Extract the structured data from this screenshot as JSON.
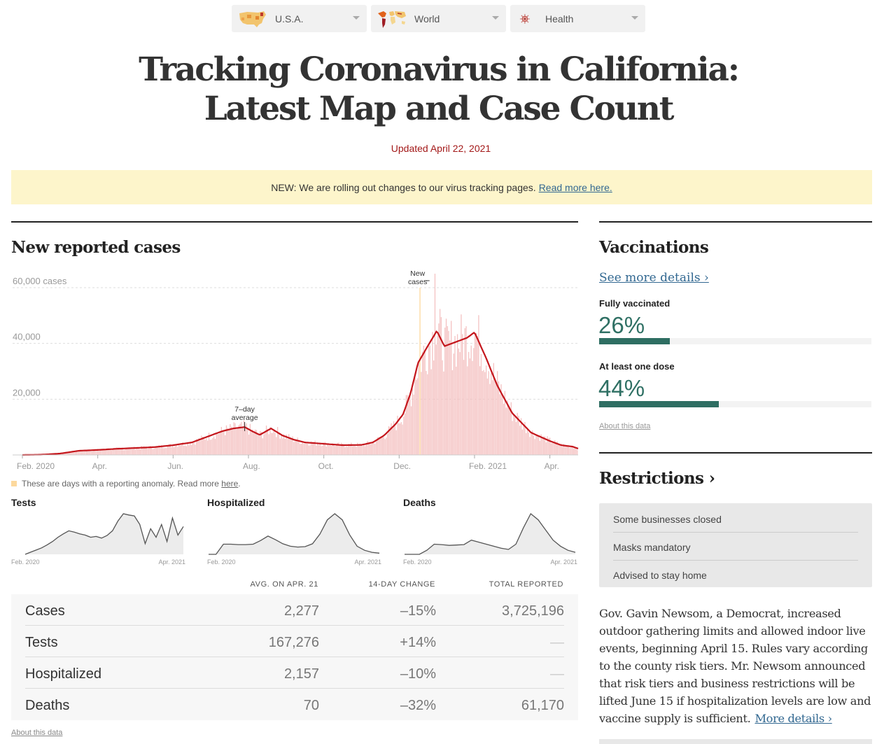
{
  "nav": [
    {
      "label": "U.S.A.",
      "icon": "usa-map-icon"
    },
    {
      "label": "World",
      "icon": "world-map-icon"
    },
    {
      "label": "Health",
      "icon": "virus-icon"
    }
  ],
  "header": {
    "title_line1": "Tracking Coronavirus in California:",
    "title_line2": "Latest Map and Case Count",
    "updated": "Updated April 22, 2021"
  },
  "banner": {
    "text": "NEW: We are rolling out changes to our virus tracking pages.",
    "link": "Read more here."
  },
  "cases_section": {
    "heading": "New reported cases",
    "anomaly_note": "These are days with a reporting anomaly. Read more",
    "anomaly_link": "here",
    "anomaly_color": "#fcd99d"
  },
  "chart_data": [
    {
      "type": "bar",
      "title": "New reported cases",
      "ylabel": "cases",
      "ylim": [
        0,
        60000
      ],
      "yticks": [
        {
          "value": 20000,
          "label": "20,000"
        },
        {
          "value": 40000,
          "label": "40,000"
        },
        {
          "value": 60000,
          "label": "60,000 cases"
        }
      ],
      "xticks": [
        "Feb. 2020",
        "Apr.",
        "Jun.",
        "Aug.",
        "Oct.",
        "Dec.",
        "Feb. 2021",
        "Apr."
      ],
      "x_range": [
        "Feb. 2020",
        "Apr. 2021"
      ],
      "grid": true,
      "annotations": [
        {
          "label": "7–day average",
          "at": "late Jul. 2020"
        },
        {
          "label": "New cases",
          "at": "mid Dec. 2020"
        }
      ],
      "series": [
        {
          "name": "7-day average",
          "kind": "line",
          "color": "#c4161c",
          "x_months": [
            0,
            0.5,
            1,
            1.5,
            2,
            2.5,
            3,
            3.5,
            4,
            4.5,
            5,
            5.3,
            5.6,
            5.9,
            6.1,
            6.3,
            6.6,
            6.9,
            7.2,
            7.5,
            8,
            8.5,
            9,
            9.3,
            9.6,
            9.9,
            10.1,
            10.3,
            10.5,
            10.8,
            11,
            11.2,
            11.5,
            11.8,
            12,
            12.3,
            12.6,
            13,
            13.5,
            14,
            14.3,
            14.6,
            14.75
          ],
          "values": [
            0,
            100,
            500,
            1500,
            1800,
            2200,
            2500,
            2800,
            3500,
            4500,
            7000,
            8500,
            9500,
            10000,
            8500,
            7200,
            9500,
            7000,
            5500,
            4500,
            4000,
            3500,
            3600,
            4500,
            7000,
            11000,
            14500,
            22000,
            33000,
            40000,
            44500,
            39000,
            40500,
            42000,
            44000,
            35000,
            25000,
            15000,
            8000,
            5000,
            3500,
            3000,
            2277
          ]
        },
        {
          "name": "New cases (daily)",
          "kind": "bar",
          "color": "#f4c2c2",
          "note": "daily values fluctuate around the 7-day average; peak single day ≈ 65,000 in mid-Dec. 2020"
        }
      ]
    },
    {
      "type": "area",
      "title": "Tests",
      "x_range": [
        "Feb. 2020",
        "Apr. 2021"
      ],
      "values": [
        0,
        5,
        10,
        15,
        22,
        30,
        40,
        48,
        55,
        52,
        48,
        45,
        40,
        42,
        38,
        44,
        55,
        78,
        95,
        92,
        90,
        70,
        25,
        60,
        40,
        70,
        30,
        85,
        45,
        65
      ]
    },
    {
      "type": "area",
      "title": "Hospitalized",
      "x_range": [
        "Feb. 2020",
        "Apr. 2021"
      ],
      "values": [
        0,
        0,
        25,
        25,
        24,
        24,
        25,
        34,
        45,
        36,
        26,
        20,
        18,
        19,
        26,
        50,
        85,
        100,
        85,
        48,
        20,
        10,
        5,
        3
      ]
    },
    {
      "type": "area",
      "title": "Deaths",
      "x_range": [
        "Feb. 2020",
        "Apr. 2021"
      ],
      "values": [
        0,
        0,
        0,
        10,
        25,
        24,
        22,
        23,
        24,
        35,
        30,
        25,
        20,
        15,
        12,
        25,
        65,
        100,
        85,
        60,
        35,
        20,
        10,
        5
      ]
    }
  ],
  "sparklines": [
    {
      "label": "Tests",
      "start": "Feb. 2020",
      "end": "Apr. 2021"
    },
    {
      "label": "Hospitalized",
      "start": "Feb. 2020",
      "end": "Apr. 2021"
    },
    {
      "label": "Deaths",
      "start": "Feb. 2020",
      "end": "Apr. 2021"
    }
  ],
  "table": {
    "headers": [
      "AVG. ON APR. 21",
      "14-DAY CHANGE",
      "TOTAL REPORTED"
    ],
    "rows": [
      {
        "label": "Cases",
        "avg": "2,277",
        "change": "–15%",
        "total": "3,725,196"
      },
      {
        "label": "Tests",
        "avg": "167,276",
        "change": "+14%",
        "total": "—"
      },
      {
        "label": "Hospitalized",
        "avg": "2,157",
        "change": "–10%",
        "total": "—"
      },
      {
        "label": "Deaths",
        "avg": "70",
        "change": "–32%",
        "total": "61,170"
      }
    ],
    "about": "About this data"
  },
  "vaccinations": {
    "heading": "Vaccinations",
    "see_more": "See more details ›",
    "items": [
      {
        "label": "Fully vaccinated",
        "pct_text": "26%",
        "pct": 26
      },
      {
        "label": "At least one dose",
        "pct_text": "44%",
        "pct": 44
      }
    ],
    "about": "About this data",
    "accent": "#2e6e62"
  },
  "restrictions": {
    "heading": "Restrictions ›",
    "items": [
      "Some businesses closed",
      "Masks mandatory",
      "Advised to stay home"
    ],
    "text": "Gov. Gavin Newsom, a Democrat, increased outdoor gathering limits and allowed indoor live events, beginning April 15. Rules vary according to the county risk tiers. Mr. Newsom announced that risk tiers and business restrictions will be lifted June 15 if hospitalization levels are low and vaccine supply is sufficient.",
    "link": "More details ›"
  }
}
